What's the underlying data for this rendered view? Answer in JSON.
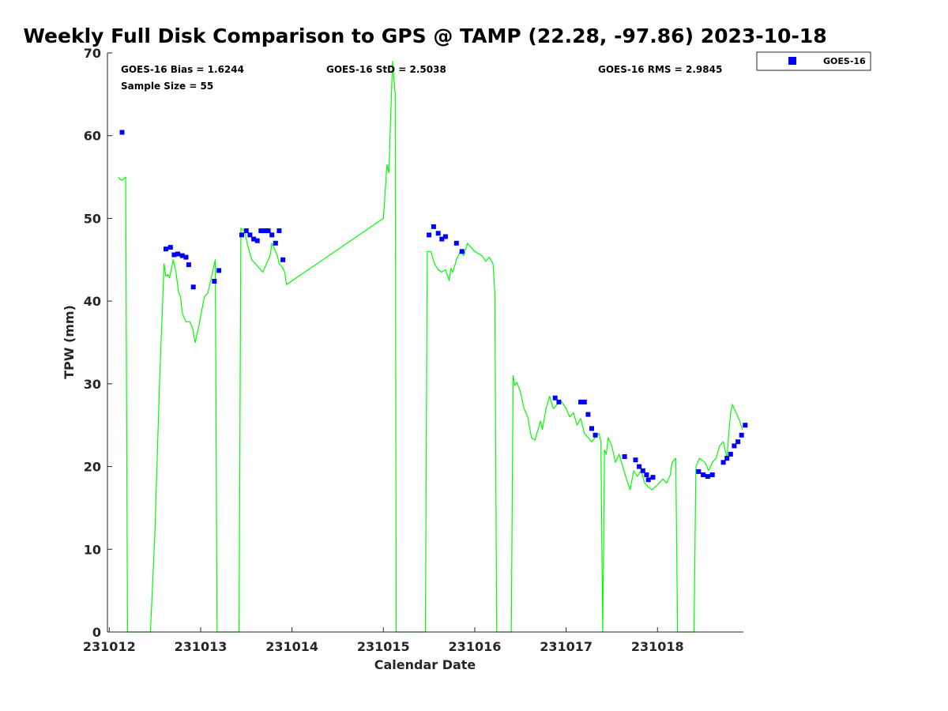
{
  "chart_data": {
    "type": "line",
    "title": "Weekly Full Disk Comparison to GPS @ TAMP (22.28, -97.86) 2023-10-18",
    "xlabel": "Calendar Date",
    "ylabel": "TPW (mm)",
    "xlim": [
      -0.02,
      6.94
    ],
    "ylim": [
      0,
      70
    ],
    "xticks": [
      {
        "v": 0,
        "label": "231012"
      },
      {
        "v": 1,
        "label": "231013"
      },
      {
        "v": 2,
        "label": "231014"
      },
      {
        "v": 3,
        "label": "231015"
      },
      {
        "v": 4,
        "label": "231016"
      },
      {
        "v": 5,
        "label": "231017"
      },
      {
        "v": 6,
        "label": "231018"
      }
    ],
    "yticks": [
      0,
      10,
      20,
      30,
      40,
      50,
      60,
      70
    ],
    "stats": {
      "bias": "GOES-16 Bias = 1.6244",
      "sample": "Sample Size = 55",
      "std": "GOES-16 StD = 2.5038",
      "rms": "GOES-16 RMS = 2.9845"
    },
    "legend": {
      "label": "GOES-16",
      "position": "top-right-outside"
    },
    "series": [
      {
        "name": "GPS",
        "kind": "line",
        "color": "#00ff00",
        "points": [
          [
            0.1,
            55.0
          ],
          [
            0.12,
            54.7
          ],
          [
            0.14,
            54.6
          ],
          [
            0.16,
            54.8
          ],
          [
            0.18,
            55.0
          ],
          [
            0.2,
            0
          ],
          [
            0.45,
            0
          ],
          [
            0.5,
            12.0
          ],
          [
            0.55,
            30.0
          ],
          [
            0.6,
            44.5
          ],
          [
            0.62,
            43.0
          ],
          [
            0.64,
            43.2
          ],
          [
            0.66,
            42.8
          ],
          [
            0.7,
            45.0
          ],
          [
            0.73,
            43.5
          ],
          [
            0.76,
            41.0
          ],
          [
            0.78,
            40.5
          ],
          [
            0.8,
            38.5
          ],
          [
            0.84,
            37.5
          ],
          [
            0.88,
            37.5
          ],
          [
            0.91,
            36.8
          ],
          [
            0.94,
            35.0
          ],
          [
            0.98,
            37.0
          ],
          [
            1.04,
            40.5
          ],
          [
            1.08,
            41.0
          ],
          [
            1.12,
            43.0
          ],
          [
            1.16,
            45.0
          ],
          [
            1.18,
            0
          ],
          [
            1.42,
            0
          ],
          [
            1.44,
            48.8
          ],
          [
            1.48,
            48.5
          ],
          [
            1.52,
            46.5
          ],
          [
            1.56,
            45.0
          ],
          [
            1.6,
            44.5
          ],
          [
            1.64,
            44.0
          ],
          [
            1.68,
            43.5
          ],
          [
            1.72,
            44.5
          ],
          [
            1.76,
            45.5
          ],
          [
            1.78,
            47.0
          ],
          [
            1.8,
            46.5
          ],
          [
            1.84,
            45.5
          ],
          [
            1.86,
            44.5
          ],
          [
            1.9,
            44.0
          ],
          [
            1.92,
            43.5
          ],
          [
            1.94,
            42.0
          ],
          [
            3.0,
            50.0
          ],
          [
            3.04,
            56.5
          ],
          [
            3.06,
            55.5
          ],
          [
            3.1,
            69.0
          ],
          [
            3.13,
            65.0
          ],
          [
            3.14,
            0
          ],
          [
            3.46,
            0
          ],
          [
            3.48,
            46.0
          ],
          [
            3.52,
            46.0
          ],
          [
            3.56,
            44.5
          ],
          [
            3.6,
            43.8
          ],
          [
            3.64,
            43.5
          ],
          [
            3.68,
            43.8
          ],
          [
            3.72,
            42.5
          ],
          [
            3.74,
            44.0
          ],
          [
            3.76,
            43.5
          ],
          [
            3.8,
            45.0
          ],
          [
            3.84,
            46.0
          ],
          [
            3.88,
            45.5
          ],
          [
            3.92,
            47.0
          ],
          [
            3.96,
            46.5
          ],
          [
            4.0,
            46.0
          ],
          [
            4.08,
            45.5
          ],
          [
            4.12,
            44.8
          ],
          [
            4.16,
            45.3
          ],
          [
            4.2,
            44.5
          ],
          [
            4.22,
            41.0
          ],
          [
            4.24,
            0
          ],
          [
            4.4,
            0
          ],
          [
            4.42,
            31.0
          ],
          [
            4.44,
            29.8
          ],
          [
            4.46,
            30.2
          ],
          [
            4.5,
            29.0
          ],
          [
            4.54,
            27.0
          ],
          [
            4.58,
            26.0
          ],
          [
            4.62,
            23.5
          ],
          [
            4.66,
            23.2
          ],
          [
            4.68,
            24.0
          ],
          [
            4.72,
            25.5
          ],
          [
            4.74,
            24.5
          ],
          [
            4.78,
            27.0
          ],
          [
            4.82,
            28.5
          ],
          [
            4.86,
            27.0
          ],
          [
            4.9,
            27.5
          ],
          [
            4.94,
            28.0
          ],
          [
            5.0,
            27.0
          ],
          [
            5.04,
            26.0
          ],
          [
            5.08,
            26.5
          ],
          [
            5.12,
            25.0
          ],
          [
            5.16,
            25.8
          ],
          [
            5.2,
            24.0
          ],
          [
            5.24,
            23.5
          ],
          [
            5.28,
            23.0
          ],
          [
            5.32,
            23.5
          ],
          [
            5.36,
            24.0
          ],
          [
            5.38,
            23.0
          ],
          [
            5.4,
            0
          ],
          [
            5.42,
            22.0
          ],
          [
            5.44,
            21.5
          ],
          [
            5.46,
            23.5
          ],
          [
            5.5,
            22.5
          ],
          [
            5.54,
            20.5
          ],
          [
            5.58,
            21.5
          ],
          [
            5.62,
            20.0
          ],
          [
            5.66,
            18.5
          ],
          [
            5.7,
            17.2
          ],
          [
            5.74,
            19.5
          ],
          [
            5.78,
            18.8
          ],
          [
            5.82,
            19.5
          ],
          [
            5.86,
            18.0
          ],
          [
            5.9,
            17.5
          ],
          [
            5.94,
            17.2
          ],
          [
            6.0,
            17.8
          ],
          [
            6.06,
            18.5
          ],
          [
            6.1,
            18.0
          ],
          [
            6.14,
            19.0
          ],
          [
            6.16,
            20.5
          ],
          [
            6.2,
            21.0
          ],
          [
            6.22,
            0
          ],
          [
            6.4,
            0
          ],
          [
            6.42,
            20.0
          ],
          [
            6.46,
            21.0
          ],
          [
            6.52,
            20.5
          ],
          [
            6.56,
            19.5
          ],
          [
            6.6,
            20.5
          ],
          [
            6.64,
            21.0
          ],
          [
            6.68,
            22.5
          ],
          [
            6.72,
            23.0
          ],
          [
            6.76,
            21.0
          ],
          [
            6.78,
            24.0
          ],
          [
            6.8,
            26.5
          ],
          [
            6.82,
            27.5
          ],
          [
            6.84,
            27.0
          ],
          [
            6.88,
            26.0
          ],
          [
            6.9,
            25.5
          ],
          [
            6.93,
            24.5
          ]
        ]
      },
      {
        "name": "GOES-16",
        "kind": "scatter",
        "color": "#0000ff",
        "points": [
          [
            0.14,
            60.4
          ],
          [
            0.62,
            46.3
          ],
          [
            0.67,
            46.5
          ],
          [
            0.71,
            45.6
          ],
          [
            0.75,
            45.7
          ],
          [
            0.8,
            45.5
          ],
          [
            0.84,
            45.3
          ],
          [
            0.87,
            44.4
          ],
          [
            0.92,
            41.7
          ],
          [
            1.15,
            42.4
          ],
          [
            1.2,
            43.7
          ],
          [
            1.45,
            48.0
          ],
          [
            1.5,
            48.5
          ],
          [
            1.54,
            48.0
          ],
          [
            1.58,
            47.5
          ],
          [
            1.62,
            47.3
          ],
          [
            1.66,
            48.5
          ],
          [
            1.7,
            48.5
          ],
          [
            1.74,
            48.5
          ],
          [
            1.78,
            48.0
          ],
          [
            1.82,
            47.0
          ],
          [
            1.86,
            48.5
          ],
          [
            1.9,
            45.0
          ],
          [
            3.5,
            48.0
          ],
          [
            3.55,
            49.0
          ],
          [
            3.6,
            48.2
          ],
          [
            3.64,
            47.5
          ],
          [
            3.68,
            47.8
          ],
          [
            3.8,
            47.0
          ],
          [
            3.86,
            46.0
          ],
          [
            4.88,
            28.3
          ],
          [
            4.92,
            27.8
          ],
          [
            5.16,
            27.8
          ],
          [
            5.2,
            27.8
          ],
          [
            5.24,
            26.3
          ],
          [
            5.28,
            24.6
          ],
          [
            5.32,
            23.8
          ],
          [
            5.64,
            21.2
          ],
          [
            5.76,
            20.8
          ],
          [
            5.8,
            20.0
          ],
          [
            5.84,
            19.5
          ],
          [
            5.88,
            19.0
          ],
          [
            5.9,
            18.4
          ],
          [
            5.95,
            18.7
          ],
          [
            6.45,
            19.4
          ],
          [
            6.5,
            19.0
          ],
          [
            6.55,
            18.8
          ],
          [
            6.6,
            19.0
          ],
          [
            6.72,
            20.5
          ],
          [
            6.76,
            21.0
          ],
          [
            6.8,
            21.5
          ],
          [
            6.84,
            22.5
          ],
          [
            6.88,
            23.0
          ],
          [
            6.92,
            23.8
          ],
          [
            6.96,
            25.0
          ]
        ]
      }
    ]
  }
}
